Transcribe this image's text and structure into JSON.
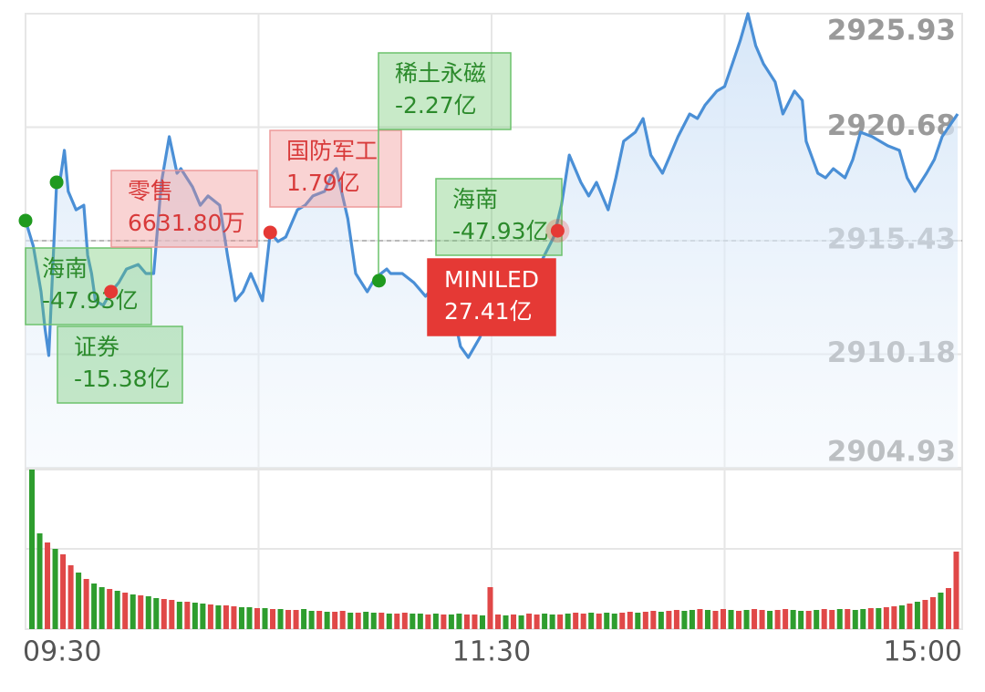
{
  "chart_data": {
    "type": "line",
    "color": "#4a8fd6",
    "xlim": [
      0,
      240
    ],
    "xticks": [
      {
        "value": 0,
        "label": "09:30"
      },
      {
        "value": 120,
        "label": "11:30"
      },
      {
        "value": 240,
        "label": "15:00"
      }
    ],
    "ylim": [
      2904.93,
      2925.93
    ],
    "yticks": [
      2904.93,
      2910.18,
      2915.43,
      2920.68,
      2925.93
    ],
    "reference": 2915.43,
    "grid": true,
    "x": [
      0,
      2,
      4,
      5,
      6,
      8,
      9,
      10,
      11,
      13,
      15,
      16,
      17,
      18,
      20,
      22,
      24,
      26,
      29,
      31,
      33,
      35,
      37,
      39,
      40,
      43,
      45,
      47,
      50,
      52,
      54,
      56,
      58,
      61,
      63,
      65,
      67,
      70,
      72,
      74,
      77,
      79,
      80,
      83,
      85,
      88,
      90,
      93,
      94,
      97,
      100,
      103,
      106,
      110,
      112,
      114,
      117,
      119,
      121,
      124,
      127,
      130,
      133,
      136,
      138,
      140,
      143,
      145,
      147,
      150,
      152,
      154,
      157,
      159,
      161,
      164,
      166,
      168,
      171,
      173,
      175,
      178,
      180,
      182,
      184,
      186,
      188,
      190,
      193,
      195,
      198,
      200,
      201,
      204,
      206,
      208,
      211,
      213,
      215,
      218,
      220,
      222,
      225,
      227,
      229,
      232,
      234,
      236,
      240
    ],
    "values": [
      2916.36,
      2915.18,
      2913.07,
      2911.38,
      2910.12,
      2918.13,
      2918.34,
      2919.61,
      2917.71,
      2916.86,
      2917.07,
      2914.76,
      2913.91,
      2912.65,
      2912.44,
      2913.07,
      2913.49,
      2914.12,
      2914.33,
      2913.91,
      2913.91,
      2918.13,
      2920.24,
      2918.55,
      2918.76,
      2917.92,
      2917.07,
      2917.5,
      2917.07,
      2914.76,
      2912.65,
      2913.07,
      2913.91,
      2912.65,
      2915.81,
      2915.39,
      2915.6,
      2916.86,
      2917.07,
      2917.5,
      2917.71,
      2918.55,
      2918.76,
      2916.44,
      2913.91,
      2913.07,
      2913.7,
      2914.12,
      2913.91,
      2913.91,
      2913.49,
      2912.86,
      2913.49,
      2912.23,
      2910.54,
      2910.03,
      2910.96,
      2912.01,
      2912.65,
      2912.65,
      2912.65,
      2913.49,
      2914.54,
      2915.6,
      2917.07,
      2919.39,
      2918.13,
      2917.5,
      2918.13,
      2916.86,
      2918.34,
      2920.03,
      2920.45,
      2921.08,
      2919.39,
      2918.55,
      2919.39,
      2920.24,
      2921.29,
      2921.08,
      2921.71,
      2922.35,
      2922.56,
      2923.61,
      2924.67,
      2925.93,
      2924.45,
      2923.61,
      2922.77,
      2921.29,
      2922.35,
      2921.92,
      2920.03,
      2918.55,
      2918.34,
      2918.76,
      2918.34,
      2919.18,
      2920.45,
      2920.24,
      2920.03,
      2919.82,
      2919.61,
      2918.34,
      2917.71,
      2918.55,
      2919.18,
      2920.24,
      2921.29
    ],
    "annotations": [
      {
        "title": "海南",
        "amount": "-47.93亿",
        "color": "green",
        "x": 0,
        "value": 2916.36
      },
      {
        "title": "证券",
        "amount": "-15.38亿",
        "color": "green",
        "x": 8,
        "value": 2918.13
      },
      {
        "title": "零售",
        "amount": "6631.80万",
        "color": "red",
        "x": 22,
        "value": 2913.07
      },
      {
        "title": "国防军工",
        "amount": "1.79亿",
        "color": "red",
        "x": 63,
        "value": 2915.81
      },
      {
        "title": "稀土永磁",
        "amount": "-2.27亿",
        "color": "green",
        "x": 91,
        "value": 2913.58
      },
      {
        "title": "海南",
        "amount": "-47.93亿",
        "color": "green"
      },
      {
        "title": "MINILED",
        "amount": "27.41亿",
        "color": "red",
        "x": 137,
        "value": 2915.89,
        "highlight": true
      }
    ],
    "volume": {
      "values": [
        175,
        105,
        95,
        88,
        82,
        70,
        62,
        55,
        50,
        46,
        44,
        42,
        40,
        38,
        37,
        36,
        34,
        33,
        32,
        30,
        30,
        29,
        28,
        27,
        26,
        26,
        25,
        24,
        24,
        23,
        23,
        22,
        22,
        21,
        21,
        22,
        20,
        20,
        19,
        19,
        20,
        18,
        18,
        19,
        18,
        18,
        17,
        17,
        18,
        17,
        17,
        16,
        17,
        16,
        16,
        17,
        16,
        16,
        15,
        46,
        16,
        15,
        16,
        15,
        17,
        16,
        17,
        16,
        16,
        17,
        18,
        17,
        18,
        17,
        18,
        17,
        18,
        19,
        18,
        19,
        20,
        19,
        20,
        21,
        20,
        21,
        22,
        21,
        20,
        22,
        21,
        20,
        21,
        22,
        21,
        20,
        21,
        22,
        21,
        20,
        20,
        21,
        22,
        21,
        22,
        22,
        21,
        22,
        23,
        23,
        24,
        25,
        26,
        28,
        30,
        32,
        35,
        40,
        45,
        85
      ],
      "up": [
        0,
        0,
        1,
        0,
        1,
        1,
        0,
        1,
        0,
        0,
        1,
        0,
        1,
        0,
        1,
        0,
        0,
        1,
        1,
        0,
        1,
        0,
        0,
        1,
        0,
        1,
        1,
        0,
        0,
        1,
        0,
        1,
        0,
        1,
        1,
        0,
        0,
        1,
        0,
        1,
        1,
        0,
        1,
        0,
        0,
        1,
        0,
        1,
        1,
        0,
        0,
        1,
        0,
        1,
        0,
        0,
        1,
        1,
        0,
        1,
        1,
        0,
        1,
        0,
        1,
        1,
        0,
        0,
        1,
        0,
        1,
        1,
        0,
        1,
        0,
        0,
        1,
        1,
        0,
        1,
        1,
        0,
        1,
        1,
        0,
        0,
        1,
        0,
        1,
        1,
        0,
        1,
        0,
        1,
        1,
        0,
        1,
        1,
        0,
        0,
        1,
        0,
        1,
        1,
        0,
        1,
        0,
        0,
        1,
        0,
        1,
        1,
        0,
        1,
        0,
        1,
        1,
        0,
        1,
        1
      ],
      "ylim": [
        0,
        175
      ],
      "up_color": "#e04848",
      "down_color": "#2e9d2e"
    }
  }
}
